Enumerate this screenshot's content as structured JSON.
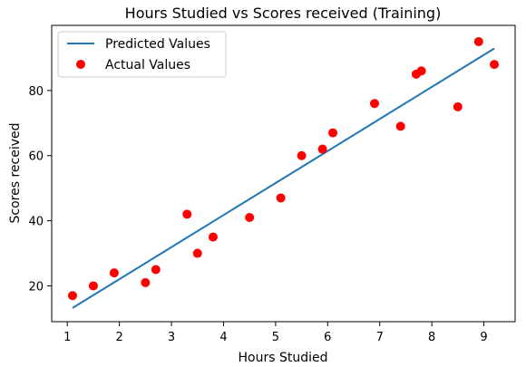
{
  "chart_data": {
    "type": "scatter",
    "title": "Hours Studied vs Scores received (Training)",
    "xlabel": "Hours Studied",
    "ylabel": "Scores received",
    "xlim": [
      0.7,
      9.6
    ],
    "ylim": [
      9,
      100
    ],
    "xticks": [
      1,
      2,
      3,
      4,
      5,
      6,
      7,
      8,
      9
    ],
    "yticks": [
      20,
      40,
      60,
      80
    ],
    "grid": false,
    "legend_position": "top-left",
    "series": [
      {
        "name": "Predicted Values",
        "kind": "line",
        "color": "#1f77b4",
        "x": [
          1.1,
          9.2
        ],
        "y": [
          13.2,
          92.9
        ]
      },
      {
        "name": "Actual Values",
        "kind": "scatter",
        "color": "#ff0000",
        "x": [
          1.1,
          1.5,
          1.9,
          2.5,
          2.7,
          3.3,
          3.5,
          3.8,
          4.5,
          5.1,
          5.5,
          5.9,
          6.1,
          6.9,
          7.4,
          7.7,
          7.8,
          8.5,
          8.9,
          9.2
        ],
        "y": [
          17,
          20,
          24,
          21,
          25,
          42,
          30,
          35,
          41,
          47,
          60,
          62,
          67,
          76,
          69,
          85,
          86,
          75,
          95,
          88
        ]
      }
    ]
  }
}
